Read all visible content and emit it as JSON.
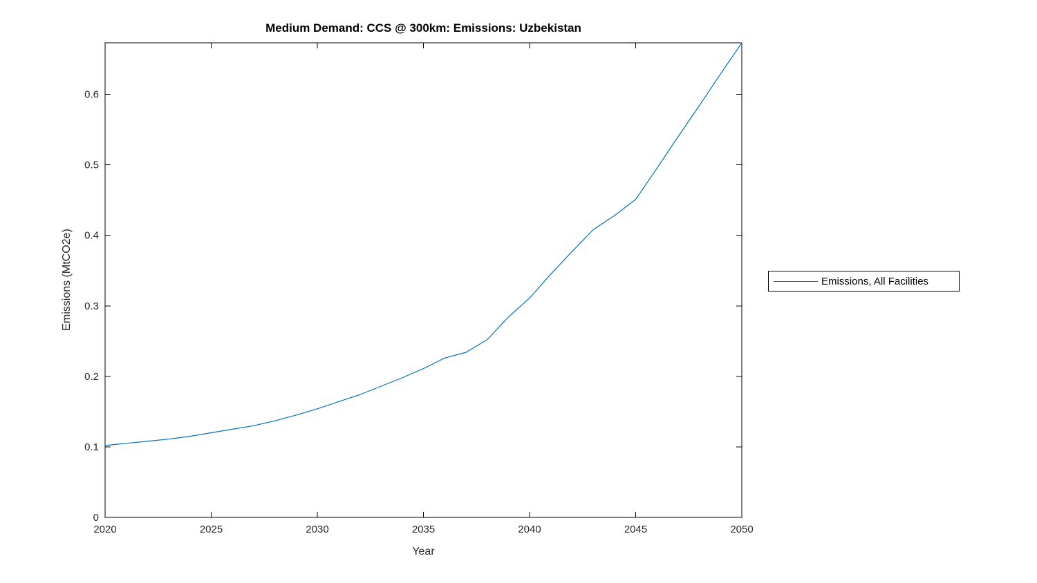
{
  "figure": {
    "background": "#ffffff"
  },
  "chart_data": {
    "type": "line",
    "title": "Medium Demand: CCS @ 300km: Emissions: Uzbekistan",
    "xlabel": "Year",
    "ylabel": "Emissions (MtCO2e)",
    "xlim": [
      2020,
      2050
    ],
    "ylim": [
      0,
      0.673
    ],
    "xticks": [
      2020,
      2025,
      2030,
      2035,
      2040,
      2045,
      2050
    ],
    "xtick_labels": [
      "2020",
      "2025",
      "2030",
      "2035",
      "2040",
      "2045",
      "2050"
    ],
    "yticks": [
      0,
      0.1,
      0.2,
      0.3,
      0.4,
      0.5,
      0.6
    ],
    "ytick_labels": [
      "0",
      "0.1",
      "0.2",
      "0.3",
      "0.4",
      "0.5",
      "0.6"
    ],
    "grid": false,
    "legend_position": "outside-right",
    "x": [
      2020,
      2021,
      2022,
      2023,
      2024,
      2025,
      2026,
      2027,
      2028,
      2029,
      2030,
      2031,
      2032,
      2033,
      2034,
      2035,
      2036,
      2037,
      2038,
      2039,
      2040,
      2041,
      2042,
      2043,
      2044,
      2045,
      2046,
      2047,
      2048,
      2049,
      2050
    ],
    "series": [
      {
        "name": "Emissions, All Facilities",
        "color": "#0072BD",
        "values": [
          0.102,
          0.105,
          0.108,
          0.111,
          0.115,
          0.12,
          0.125,
          0.13,
          0.137,
          0.145,
          0.154,
          0.164,
          0.174,
          0.186,
          0.198,
          0.211,
          0.226,
          0.234,
          0.252,
          0.284,
          0.311,
          0.345,
          0.377,
          0.408,
          0.428,
          0.451,
          0.495,
          0.54,
          0.584,
          0.629,
          0.673
        ]
      }
    ]
  },
  "colors": {
    "line": "#0072BD",
    "axis": "#000000",
    "tick_text": "#262626",
    "background": "#ffffff"
  }
}
